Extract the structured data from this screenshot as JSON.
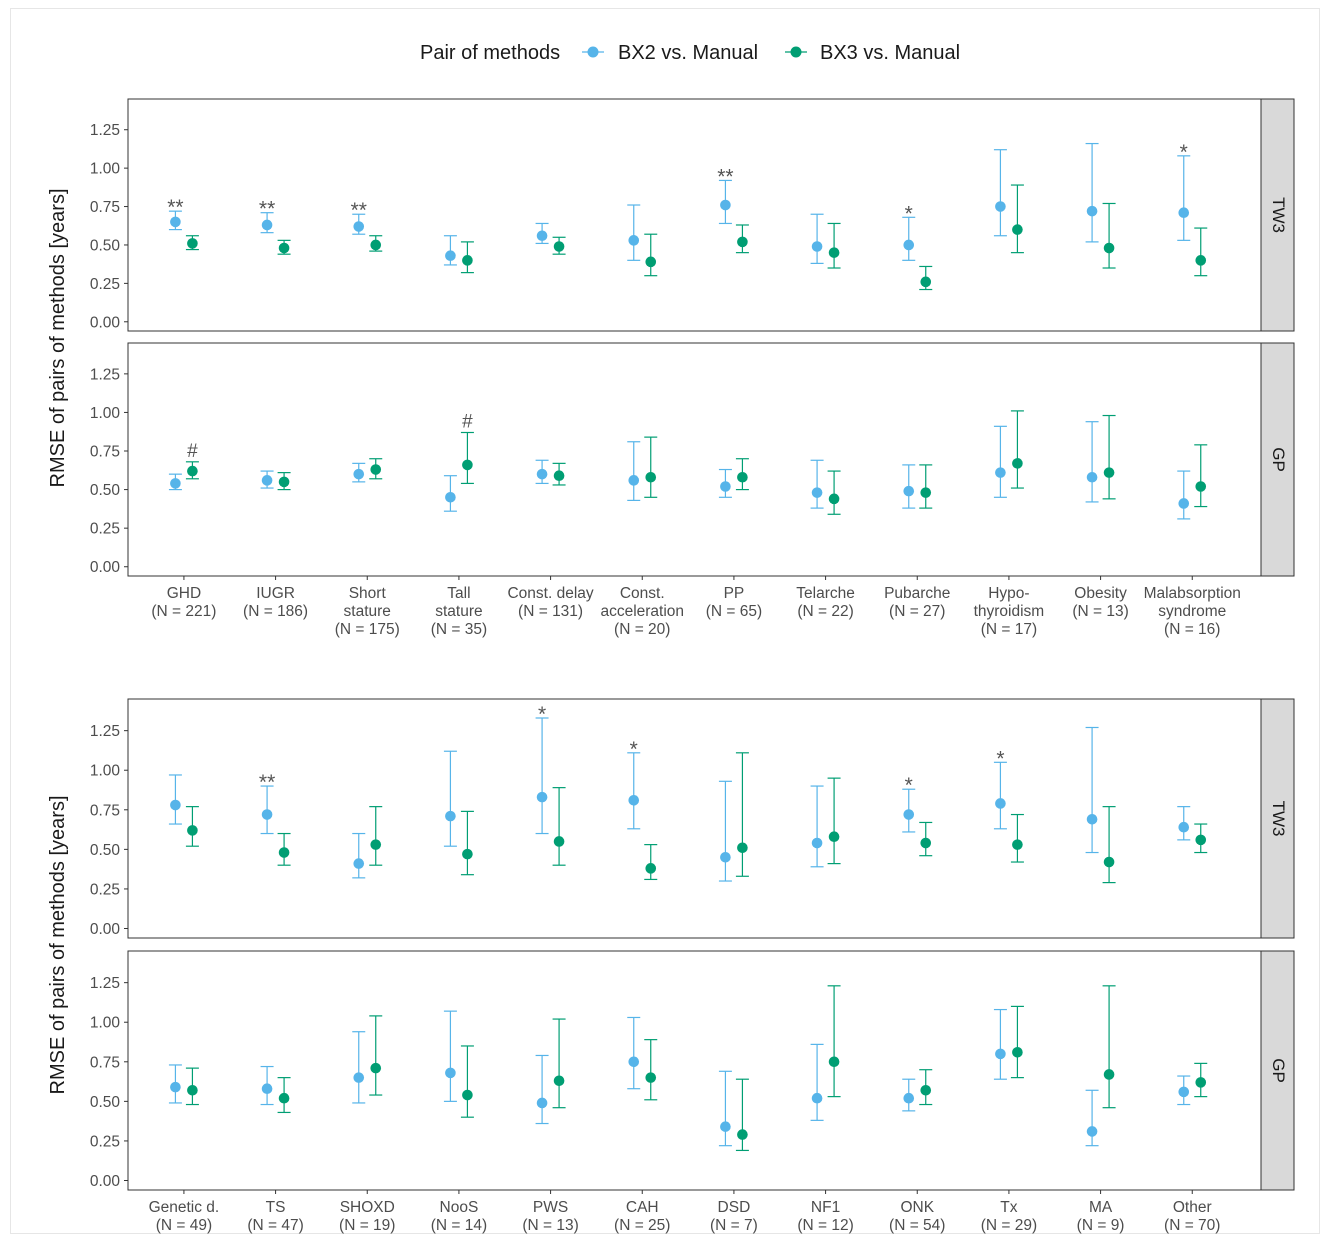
{
  "chart_data": {
    "type": "scatter",
    "legend": {
      "title": "Pair of methods",
      "placement": "top",
      "entries": [
        {
          "label": "BX2 vs. Manual",
          "color": "#56B4E9"
        },
        {
          "label": "BX3 vs. Manual",
          "color": "#009E73"
        }
      ]
    },
    "ylabel": "RMSE of pairs of methods [years]",
    "ylim": [
      -0.06,
      1.45
    ],
    "yticks": [
      "0.00",
      "0.25",
      "0.50",
      "0.75",
      "1.00",
      "1.25"
    ],
    "grid": false,
    "series_colors": {
      "BX2": "#56B4E9",
      "BX3": "#009E73"
    },
    "charts": [
      {
        "categories": [
          {
            "lines": [
              "GHD",
              "(N = 221)"
            ]
          },
          {
            "lines": [
              "IUGR",
              "(N = 186)"
            ]
          },
          {
            "lines": [
              "Short",
              "stature",
              "(N = 175)"
            ]
          },
          {
            "lines": [
              "Tall",
              "stature",
              "(N = 35)"
            ]
          },
          {
            "lines": [
              "Const. delay",
              "(N = 131)"
            ]
          },
          {
            "lines": [
              "Const.",
              "acceleration",
              "(N = 20)"
            ]
          },
          {
            "lines": [
              "PP",
              "(N = 65)"
            ]
          },
          {
            "lines": [
              "Telarche",
              "(N = 22)"
            ]
          },
          {
            "lines": [
              "Pubarche",
              "(N = 27)"
            ]
          },
          {
            "lines": [
              "Hypo-",
              "thyroidism",
              "(N = 17)"
            ]
          },
          {
            "lines": [
              "Obesity",
              "(N = 13)"
            ]
          },
          {
            "lines": [
              "Malabsorption",
              "syndrome",
              "(N = 16)"
            ]
          }
        ],
        "panels": [
          {
            "strip": "TW3",
            "bx2": [
              [
                0.65,
                0.6,
                0.72
              ],
              [
                0.63,
                0.58,
                0.71
              ],
              [
                0.62,
                0.57,
                0.7
              ],
              [
                0.43,
                0.37,
                0.56
              ],
              [
                0.56,
                0.51,
                0.64
              ],
              [
                0.53,
                0.4,
                0.76
              ],
              [
                0.76,
                0.64,
                0.92
              ],
              [
                0.49,
                0.38,
                0.7
              ],
              [
                0.5,
                0.4,
                0.68
              ],
              [
                0.75,
                0.56,
                1.12
              ],
              [
                0.72,
                0.52,
                1.16
              ],
              [
                0.71,
                0.53,
                1.08
              ]
            ],
            "bx3": [
              [
                0.51,
                0.47,
                0.56
              ],
              [
                0.48,
                0.44,
                0.53
              ],
              [
                0.5,
                0.46,
                0.56
              ],
              [
                0.4,
                0.32,
                0.52
              ],
              [
                0.49,
                0.44,
                0.55
              ],
              [
                0.39,
                0.3,
                0.57
              ],
              [
                0.52,
                0.45,
                0.63
              ],
              [
                0.45,
                0.35,
                0.64
              ],
              [
                0.26,
                0.21,
                0.36
              ],
              [
                0.6,
                0.45,
                0.89
              ],
              [
                0.48,
                0.35,
                0.77
              ],
              [
                0.4,
                0.3,
                0.61
              ]
            ],
            "annotations": [
              {
                "i": 0,
                "s": "bx2",
                "text": "**"
              },
              {
                "i": 1,
                "s": "bx2",
                "text": "**"
              },
              {
                "i": 2,
                "s": "bx2",
                "text": "**"
              },
              {
                "i": 6,
                "s": "bx2",
                "text": "**"
              },
              {
                "i": 8,
                "s": "bx2",
                "text": "*"
              },
              {
                "i": 11,
                "s": "bx2",
                "text": "*"
              }
            ]
          },
          {
            "strip": "GP",
            "bx2": [
              [
                0.54,
                0.5,
                0.6
              ],
              [
                0.56,
                0.51,
                0.62
              ],
              [
                0.6,
                0.55,
                0.67
              ],
              [
                0.45,
                0.36,
                0.59
              ],
              [
                0.6,
                0.54,
                0.69
              ],
              [
                0.56,
                0.43,
                0.81
              ],
              [
                0.52,
                0.45,
                0.63
              ],
              [
                0.48,
                0.38,
                0.69
              ],
              [
                0.49,
                0.38,
                0.66
              ],
              [
                0.61,
                0.45,
                0.91
              ],
              [
                0.58,
                0.42,
                0.94
              ],
              [
                0.41,
                0.31,
                0.62
              ]
            ],
            "bx3": [
              [
                0.62,
                0.57,
                0.68
              ],
              [
                0.55,
                0.5,
                0.61
              ],
              [
                0.63,
                0.57,
                0.7
              ],
              [
                0.66,
                0.54,
                0.87
              ],
              [
                0.59,
                0.53,
                0.67
              ],
              [
                0.58,
                0.45,
                0.84
              ],
              [
                0.58,
                0.5,
                0.7
              ],
              [
                0.44,
                0.34,
                0.62
              ],
              [
                0.48,
                0.38,
                0.66
              ],
              [
                0.67,
                0.51,
                1.01
              ],
              [
                0.61,
                0.44,
                0.98
              ],
              [
                0.52,
                0.39,
                0.79
              ]
            ],
            "annotations": [
              {
                "i": 0,
                "s": "bx3",
                "text": "#"
              },
              {
                "i": 3,
                "s": "bx3",
                "text": "#"
              }
            ]
          }
        ]
      },
      {
        "categories": [
          {
            "lines": [
              "Genetic d.",
              "(N = 49)"
            ]
          },
          {
            "lines": [
              "TS",
              "(N = 47)"
            ]
          },
          {
            "lines": [
              "SHOXD",
              "(N = 19)"
            ]
          },
          {
            "lines": [
              "NooS",
              "(N = 14)"
            ]
          },
          {
            "lines": [
              "PWS",
              "(N = 13)"
            ]
          },
          {
            "lines": [
              "CAH",
              "(N = 25)"
            ]
          },
          {
            "lines": [
              "DSD",
              "(N = 7)"
            ]
          },
          {
            "lines": [
              "NF1",
              "(N = 12)"
            ]
          },
          {
            "lines": [
              "ONK",
              "(N = 54)"
            ]
          },
          {
            "lines": [
              "Tx",
              "(N = 29)"
            ]
          },
          {
            "lines": [
              "MA",
              "(N = 9)"
            ]
          },
          {
            "lines": [
              "Other",
              "(N = 70)"
            ]
          }
        ],
        "panels": [
          {
            "strip": "TW3",
            "bx2": [
              [
                0.78,
                0.66,
                0.97
              ],
              [
                0.72,
                0.6,
                0.9
              ],
              [
                0.41,
                0.32,
                0.6
              ],
              [
                0.71,
                0.52,
                1.12
              ],
              [
                0.83,
                0.6,
                1.33
              ],
              [
                0.81,
                0.63,
                1.11
              ],
              [
                0.45,
                0.3,
                0.93
              ],
              [
                0.54,
                0.39,
                0.9
              ],
              [
                0.72,
                0.61,
                0.88
              ],
              [
                0.79,
                0.63,
                1.05
              ],
              [
                0.69,
                0.48,
                1.27
              ],
              [
                0.64,
                0.56,
                0.77
              ]
            ],
            "bx3": [
              [
                0.62,
                0.52,
                0.77
              ],
              [
                0.48,
                0.4,
                0.6
              ],
              [
                0.53,
                0.4,
                0.77
              ],
              [
                0.47,
                0.34,
                0.74
              ],
              [
                0.55,
                0.4,
                0.89
              ],
              [
                0.38,
                0.31,
                0.53
              ],
              [
                0.51,
                0.33,
                1.11
              ],
              [
                0.58,
                0.41,
                0.95
              ],
              [
                0.54,
                0.46,
                0.67
              ],
              [
                0.53,
                0.42,
                0.72
              ],
              [
                0.42,
                0.29,
                0.77
              ],
              [
                0.56,
                0.48,
                0.66
              ]
            ],
            "annotations": [
              {
                "i": 1,
                "s": "bx2",
                "text": "**"
              },
              {
                "i": 4,
                "s": "bx2",
                "text": "*"
              },
              {
                "i": 5,
                "s": "bx2",
                "text": "*"
              },
              {
                "i": 8,
                "s": "bx2",
                "text": "*"
              },
              {
                "i": 9,
                "s": "bx2",
                "text": "*"
              }
            ]
          },
          {
            "strip": "GP",
            "bx2": [
              [
                0.59,
                0.49,
                0.73
              ],
              [
                0.58,
                0.48,
                0.72
              ],
              [
                0.65,
                0.49,
                0.94
              ],
              [
                0.68,
                0.5,
                1.07
              ],
              [
                0.49,
                0.36,
                0.79
              ],
              [
                0.75,
                0.58,
                1.03
              ],
              [
                0.34,
                0.22,
                0.69
              ],
              [
                0.52,
                0.38,
                0.86
              ],
              [
                0.52,
                0.44,
                0.64
              ],
              [
                0.8,
                0.64,
                1.08
              ],
              [
                0.31,
                0.22,
                0.57
              ],
              [
                0.56,
                0.48,
                0.66
              ]
            ],
            "bx3": [
              [
                0.57,
                0.48,
                0.71
              ],
              [
                0.52,
                0.43,
                0.65
              ],
              [
                0.71,
                0.54,
                1.04
              ],
              [
                0.54,
                0.4,
                0.85
              ],
              [
                0.63,
                0.46,
                1.02
              ],
              [
                0.65,
                0.51,
                0.89
              ],
              [
                0.29,
                0.19,
                0.64
              ],
              [
                0.75,
                0.53,
                1.23
              ],
              [
                0.57,
                0.48,
                0.7
              ],
              [
                0.81,
                0.65,
                1.1
              ],
              [
                0.67,
                0.46,
                1.23
              ],
              [
                0.62,
                0.53,
                0.74
              ]
            ],
            "annotations": []
          }
        ]
      }
    ]
  }
}
